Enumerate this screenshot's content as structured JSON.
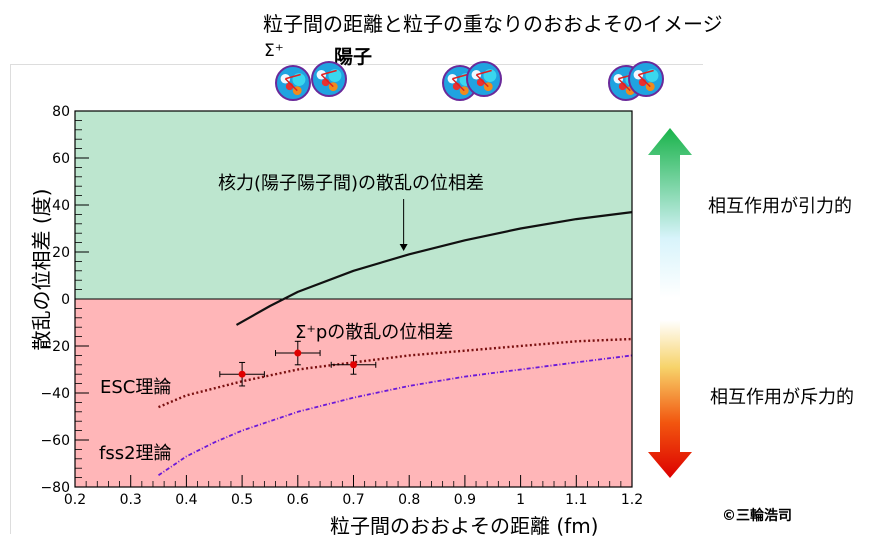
{
  "top_title": "粒子間の距離と粒子の重なりのおおよそのイメージ",
  "sigma_label": "Σ⁺",
  "proton_label": "陽子",
  "attract_label": "相互作用が引力的",
  "repulse_label": "相互作用が斥力的",
  "copyright": "©三輪浩司",
  "colors": {
    "attract_region": "#bde6cf",
    "repulse_region": "#ffb6b8",
    "nuclear_curve": "#111111",
    "esc_curve": "#7a1010",
    "fss2_curve": "#6a18d8",
    "data_points": "#e00000"
  },
  "particle_icons": [
    "sigma-proton-overlap-large",
    "sigma-proton-overlap-medium",
    "sigma-proton-overlap-small"
  ],
  "chart_data": {
    "type": "line",
    "title": "",
    "xlabel": "粒子間のおおよその距離 (fm)",
    "ylabel": "散乱の位相差 (度)",
    "xlim": [
      0.2,
      1.2
    ],
    "ylim": [
      -80,
      80
    ],
    "xticks": [
      "0.2",
      "0.3",
      "0.4",
      "0.5",
      "0.6",
      "0.7",
      "0.8",
      "0.9",
      "1",
      "1.1",
      "1.2"
    ],
    "yticks": [
      "−80",
      "−60",
      "−40",
      "−20",
      "0",
      "20",
      "40",
      "60",
      "80"
    ],
    "regions": [
      {
        "y_from": 0,
        "y_to": 80,
        "meaning": "attractive"
      },
      {
        "y_from": -80,
        "y_to": 0,
        "meaning": "repulsive"
      }
    ],
    "series": [
      {
        "name": "核力(陽子陽子間)の散乱の位相差",
        "style": "solid",
        "x": [
          0.49,
          0.55,
          0.6,
          0.7,
          0.8,
          0.9,
          1.0,
          1.1,
          1.2
        ],
        "y": [
          -11,
          -3,
          3,
          12,
          19,
          25,
          30,
          34,
          37
        ]
      },
      {
        "name": "ESC理論",
        "style": "dotted",
        "x": [
          0.35,
          0.4,
          0.5,
          0.6,
          0.7,
          0.8,
          0.9,
          1.0,
          1.1,
          1.2
        ],
        "y": [
          -46,
          -41,
          -35,
          -30,
          -27,
          -24,
          -22,
          -20,
          -18,
          -17
        ]
      },
      {
        "name": "fss2理論",
        "style": "dashdot",
        "x": [
          0.35,
          0.4,
          0.45,
          0.5,
          0.6,
          0.7,
          0.8,
          0.9,
          1.0,
          1.1,
          1.2
        ],
        "y": [
          -75,
          -67,
          -61,
          -56,
          -48,
          -42,
          -37,
          -33,
          -30,
          -27,
          -24
        ]
      }
    ],
    "points": {
      "name": "Σ⁺pの散乱の位相差",
      "x": [
        0.5,
        0.6,
        0.7
      ],
      "y": [
        -32,
        -23,
        -28
      ],
      "xerr": [
        0.04,
        0.04,
        0.04
      ],
      "yerr": [
        5,
        5,
        4
      ]
    },
    "annotation": {
      "text": "核力(陽子陽子間)の散乱の位相差",
      "arrow_to": [
        0.79,
        20
      ]
    }
  }
}
